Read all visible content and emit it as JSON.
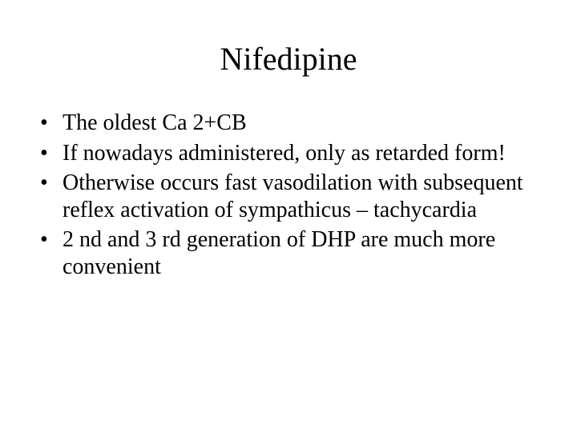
{
  "slide": {
    "title": "Nifedipine",
    "bullets": [
      "The oldest Ca 2+CB",
      "If nowadays administered, only as retarded form!",
      "Otherwise occurs fast vasodilation with subsequent reflex activation of sympathicus – tachycardia",
      "2 nd and 3 rd generation of DHP are much more convenient"
    ],
    "style": {
      "background_color": "#ffffff",
      "text_color": "#000000",
      "font_family": "Times New Roman",
      "title_fontsize": 40,
      "body_fontsize": 28
    }
  }
}
